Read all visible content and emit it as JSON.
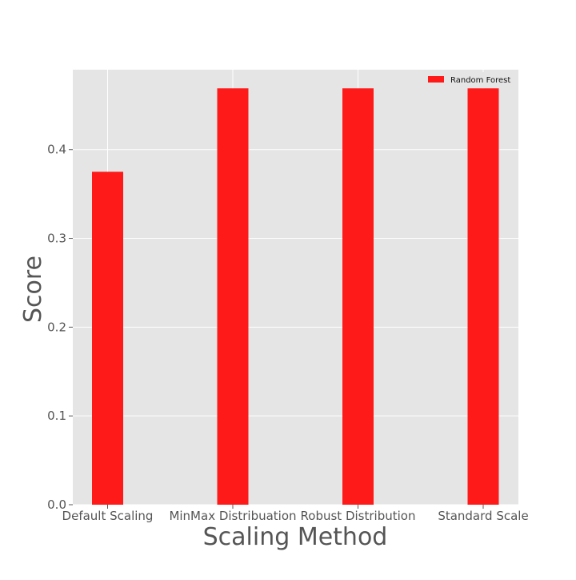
{
  "chart_data": {
    "type": "bar",
    "title": "",
    "xlabel": "Scaling Method",
    "ylabel": "Score",
    "categories": [
      "Default Scaling",
      "MinMax Distribuation",
      "Robust Distribution",
      "Standard Scale"
    ],
    "series": [
      {
        "name": "Random Forest",
        "values": [
          0.375,
          0.469,
          0.469,
          0.469
        ],
        "color": "#ff1a1a"
      }
    ],
    "ylim": [
      0,
      0.49
    ],
    "yticks": [
      0.0,
      0.1,
      0.2,
      0.3,
      0.4
    ],
    "ytick_labels": [
      "0.0",
      "0.1",
      "0.2",
      "0.3",
      "0.4"
    ],
    "grid": true,
    "legend_position": "top-right",
    "plot_background": "#e5e5e5",
    "grid_color": "#ffffff",
    "text_color": "#555555"
  }
}
